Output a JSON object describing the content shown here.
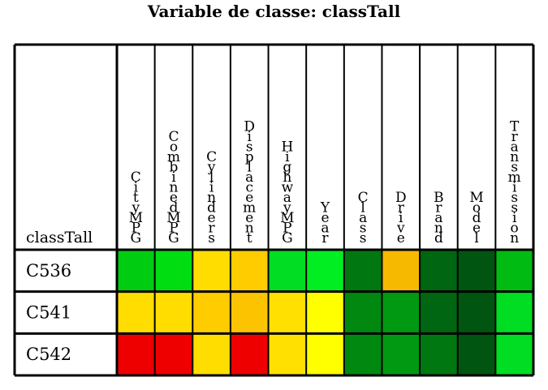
{
  "chart_data": {
    "type": "heatmap",
    "title": "Variable de classe: classTall",
    "corner_label": "classTall",
    "columns": [
      "CityMPG",
      "CombinedMPG",
      "Cylinders",
      "Displacement",
      "HighwayMPG",
      "Year",
      "Class",
      "Drive",
      "Brand",
      "Model",
      "Transmission"
    ],
    "rows": [
      {
        "label": "C536",
        "colors": [
          "#00CC11",
          "#00DD11",
          "#FFDD00",
          "#FFCC00",
          "#00DD22",
          "#00EE22",
          "#007711",
          "#F7B800",
          "#006611",
          "#005511",
          "#00BB11"
        ]
      },
      {
        "label": "C541",
        "colors": [
          "#FFDD00",
          "#FFDD00",
          "#FFCC00",
          "#FCC400",
          "#FFE000",
          "#FFFF00",
          "#008811",
          "#009911",
          "#006611",
          "#005511",
          "#00DD22"
        ]
      },
      {
        "label": "C542",
        "colors": [
          "#EE0000",
          "#EE0000",
          "#FFDD00",
          "#EE0000",
          "#FFE000",
          "#FFFF00",
          "#008811",
          "#009911",
          "#007711",
          "#005511",
          "#00DD22"
        ]
      }
    ]
  }
}
